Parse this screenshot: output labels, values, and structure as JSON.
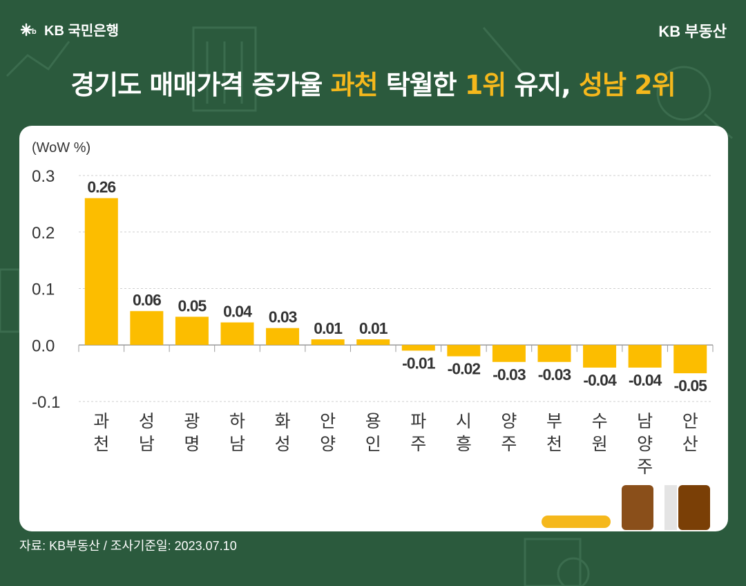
{
  "header": {
    "bank_logo_text": "KB 국민은행",
    "brand_right": "KB 부동산"
  },
  "headline": {
    "part1": "경기도 매매가격 증가율 ",
    "hl1": "과천",
    "part2": " 탁월한 ",
    "hl2": "1위",
    "part3": " 유지, ",
    "hl3": "성남 2위"
  },
  "colors": {
    "background": "#2b5a3d",
    "bar": "#fcbd00",
    "highlight": "#f5b81c"
  },
  "chart_data": {
    "type": "bar",
    "ylabel": "(WoW %)",
    "ylim": [
      -0.1,
      0.3
    ],
    "yticks": [
      "0.3",
      "0.2",
      "0.1",
      "0.0",
      "-0.1"
    ],
    "ytick_values": [
      0.3,
      0.2,
      0.1,
      0.0,
      -0.1
    ],
    "grid": true,
    "categories": [
      "과천",
      "성남",
      "광명",
      "하남",
      "화성",
      "안양",
      "용인",
      "파주",
      "시흥",
      "양주",
      "부천",
      "수원",
      "남양주",
      "안산"
    ],
    "values": [
      0.26,
      0.06,
      0.05,
      0.04,
      0.03,
      0.01,
      0.01,
      -0.01,
      -0.02,
      -0.03,
      -0.03,
      -0.04,
      -0.04,
      -0.05
    ],
    "labels": [
      "0.26",
      "0.06",
      "0.05",
      "0.04",
      "0.03",
      "0.01",
      "0.01",
      "-0.01",
      "-0.02",
      "-0.03",
      "-0.03",
      "-0.04",
      "-0.04",
      "-0.05"
    ]
  },
  "footer": {
    "source": "자료: KB부동산 / 조사기준일: 2023.07.10"
  }
}
